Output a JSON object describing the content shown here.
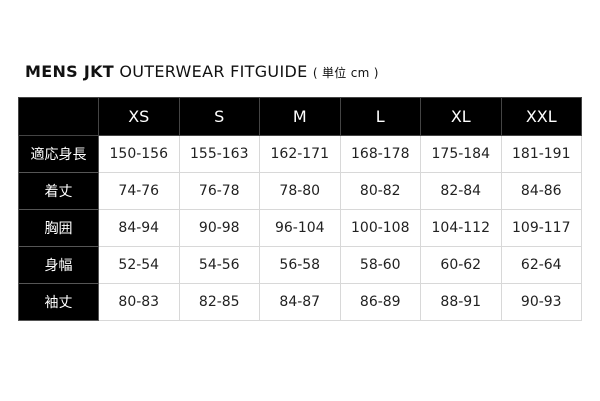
{
  "title": {
    "bold": "MENS JKT",
    "rest": "OUTERWEAR FITGUIDE",
    "unit": "( 単位 cm )"
  },
  "table": {
    "headers": [
      "",
      "XS",
      "S",
      "M",
      "L",
      "XL",
      "XXL"
    ],
    "rows": [
      {
        "label": "適応身長",
        "values": [
          "150-156",
          "155-163",
          "162-171",
          "168-178",
          "175-184",
          "181-191"
        ]
      },
      {
        "label": "着丈",
        "values": [
          "74-76",
          "76-78",
          "78-80",
          "80-82",
          "82-84",
          "84-86"
        ]
      },
      {
        "label": "胸囲",
        "values": [
          "84-94",
          "90-98",
          "96-104",
          "100-108",
          "104-112",
          "109-117"
        ]
      },
      {
        "label": "身幅",
        "values": [
          "52-54",
          "54-56",
          "56-58",
          "58-60",
          "60-62",
          "62-64"
        ]
      },
      {
        "label": "袖丈",
        "values": [
          "80-83",
          "82-85",
          "84-87",
          "86-89",
          "88-91",
          "90-93"
        ]
      }
    ]
  }
}
